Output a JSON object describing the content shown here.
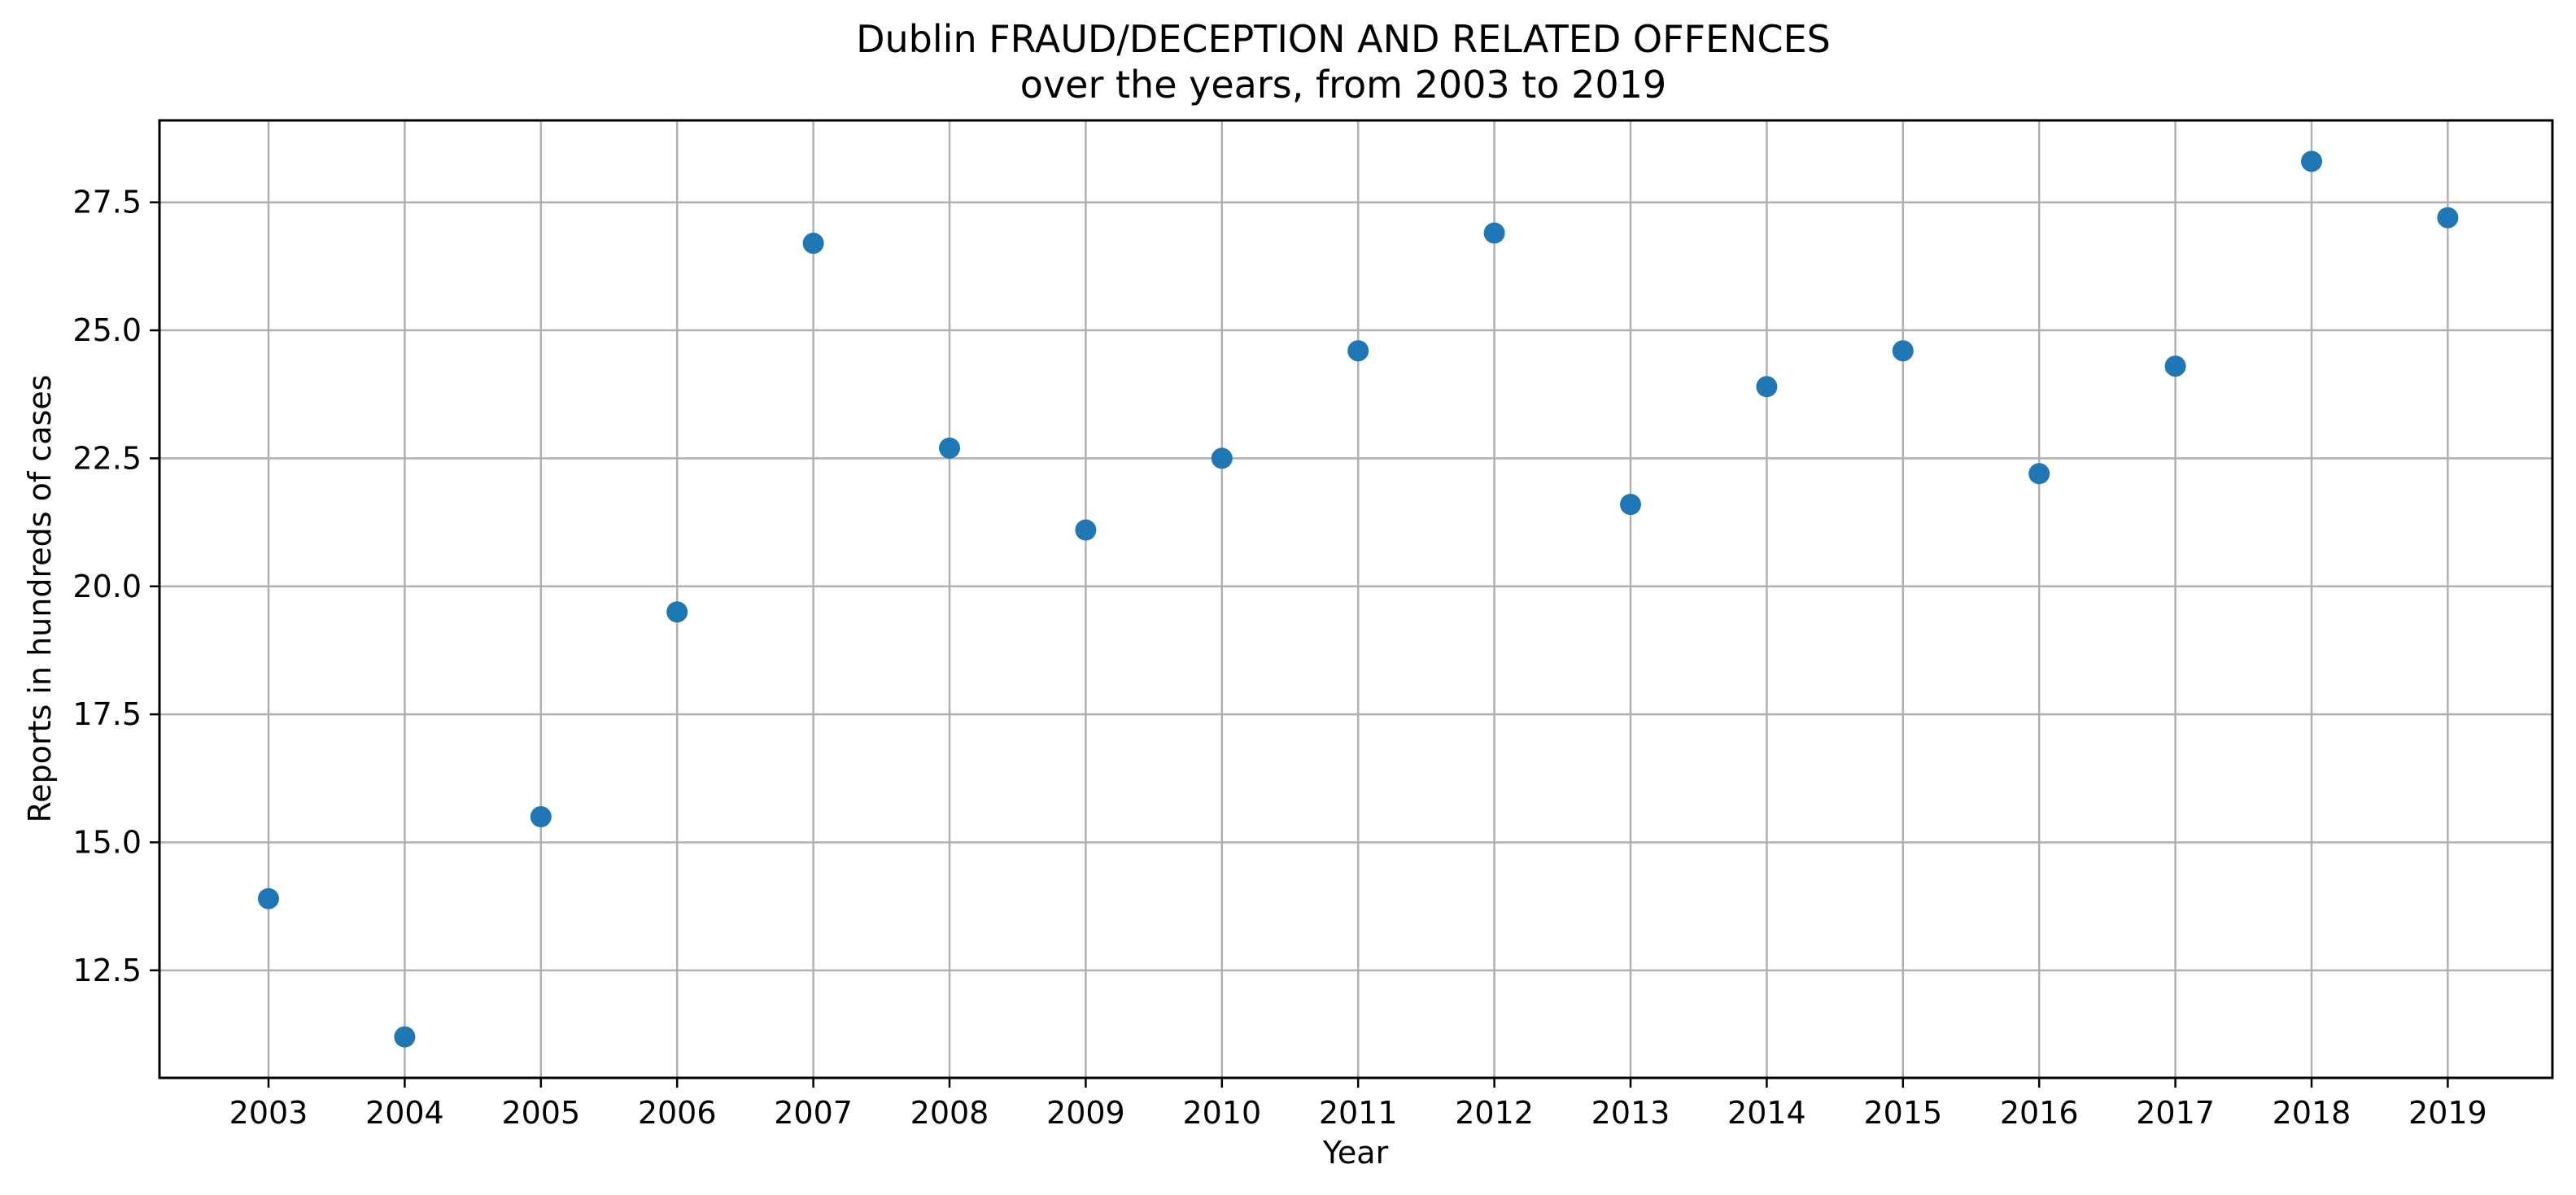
{
  "chart_data": {
    "type": "scatter",
    "title": "Dublin FRAUD/DECEPTION AND RELATED OFFENCES",
    "subtitle": "over the years, from 2003 to 2019",
    "xlabel": "Year",
    "ylabel": "Reports in hundreds of cases",
    "x": [
      "2003",
      "2004",
      "2005",
      "2006",
      "2007",
      "2008",
      "2009",
      "2010",
      "2011",
      "2012",
      "2013",
      "2014",
      "2015",
      "2016",
      "2017",
      "2018",
      "2019"
    ],
    "values": [
      13.9,
      11.2,
      15.5,
      19.5,
      26.7,
      22.7,
      21.1,
      22.5,
      24.6,
      26.9,
      21.6,
      23.9,
      24.6,
      22.2,
      24.3,
      28.3,
      27.2
    ],
    "yticks": [
      "12.5",
      "15.0",
      "17.5",
      "20.0",
      "22.5",
      "25.0",
      "27.5"
    ],
    "ylim": [
      10.4,
      29.1
    ],
    "grid": true,
    "marker_color": "#1f77b4"
  }
}
